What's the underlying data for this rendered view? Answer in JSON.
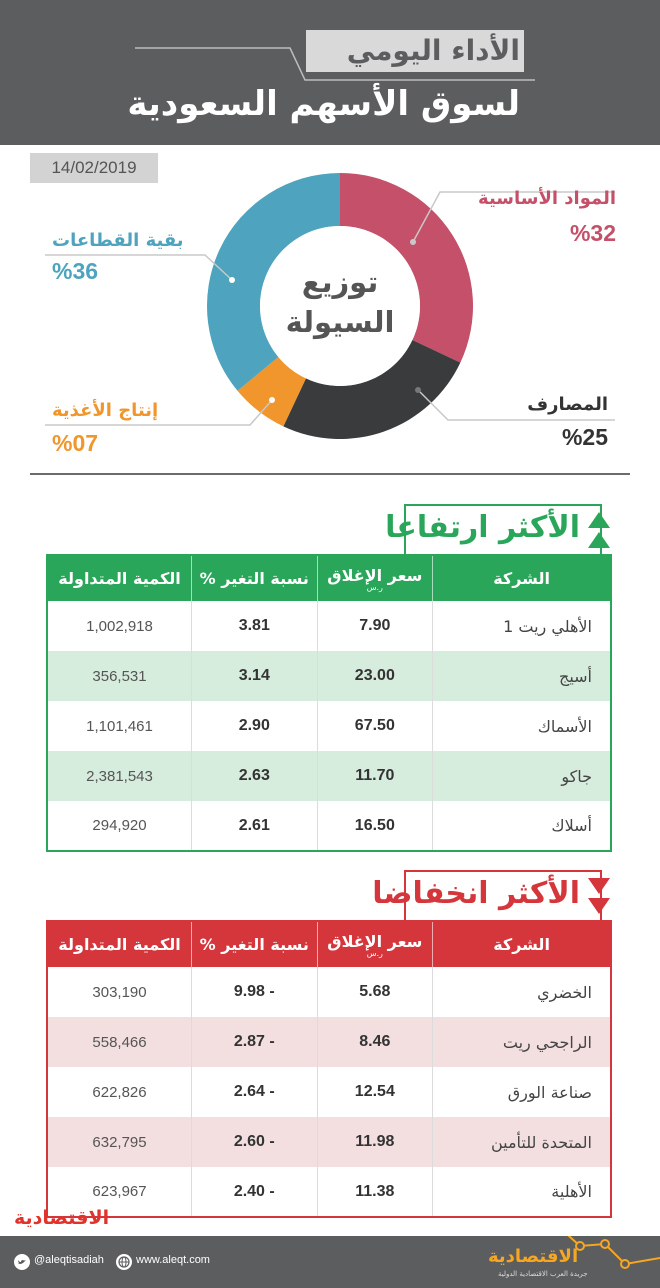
{
  "header": {
    "subtitle": "الأداء اليومي",
    "title": "لسوق الأسهم السعودية"
  },
  "date": "14/02/2019",
  "donut": {
    "center_line1": "توزيع",
    "center_line2": "السيولة",
    "segments": [
      {
        "label": "المواد الأساسية",
        "pct_text": "%32",
        "value": 32,
        "color": "#c4506a"
      },
      {
        "label": "المصارف",
        "pct_text": "%25",
        "value": 25,
        "color": "#3a3b3d"
      },
      {
        "label": "إنتاج الأغذية",
        "pct_text": "%07",
        "value": 7,
        "color": "#f0962d"
      },
      {
        "label": "بقية القطاعات",
        "pct_text": "%36",
        "value": 36,
        "color": "#4ea3be"
      }
    ]
  },
  "gainers": {
    "title": "الأكثر ارتفاعا",
    "color": "#2aa65a",
    "headers": {
      "company": "الشركة",
      "close": "سعر الإغلاق",
      "close_unit": "ر.س",
      "change": "نسبة التغير %",
      "volume": "الكمية المتداولة"
    },
    "rows": [
      {
        "company": "الأهلي ريت 1",
        "close": "7.90",
        "change": "3.81",
        "volume": "1,002,918"
      },
      {
        "company": "أسيج",
        "close": "23.00",
        "change": "3.14",
        "volume": "356,531"
      },
      {
        "company": "الأسماك",
        "close": "67.50",
        "change": "2.90",
        "volume": "1,101,461"
      },
      {
        "company": "جاكو",
        "close": "11.70",
        "change": "2.63",
        "volume": "2,381,543"
      },
      {
        "company": "أسلاك",
        "close": "16.50",
        "change": "2.61",
        "volume": "294,920"
      }
    ]
  },
  "losers": {
    "title": "الأكثر انخفاضا",
    "color": "#d4363c",
    "headers": {
      "company": "الشركة",
      "close": "سعر الإغلاق",
      "close_unit": "ر.س",
      "change": "نسبة التغير %",
      "volume": "الكمية المتداولة"
    },
    "rows": [
      {
        "company": "الخضري",
        "close": "5.68",
        "change": "9.98 -",
        "volume": "303,190"
      },
      {
        "company": "الراجحي ريت",
        "close": "8.46",
        "change": "2.87 -",
        "volume": "558,466"
      },
      {
        "company": "صناعة الورق",
        "close": "12.54",
        "change": "2.64 -",
        "volume": "622,826"
      },
      {
        "company": "المتحدة للتأمين",
        "close": "11.98",
        "change": "2.60 -",
        "volume": "632,795"
      },
      {
        "company": "الأهلية",
        "close": "11.38",
        "change": "2.40 -",
        "volume": "623,967"
      }
    ]
  },
  "brand": {
    "name": "الاقتصادية",
    "sub": "جريدة العرب الاقتصادية الدولية"
  },
  "footer": {
    "twitter": "@aleqtisadiah",
    "website": "www.aleqt.com"
  },
  "icons": {
    "twitter": "twitter-icon",
    "globe": "globe-icon",
    "up": "triangle-up-icon",
    "down": "triangle-down-icon"
  }
}
